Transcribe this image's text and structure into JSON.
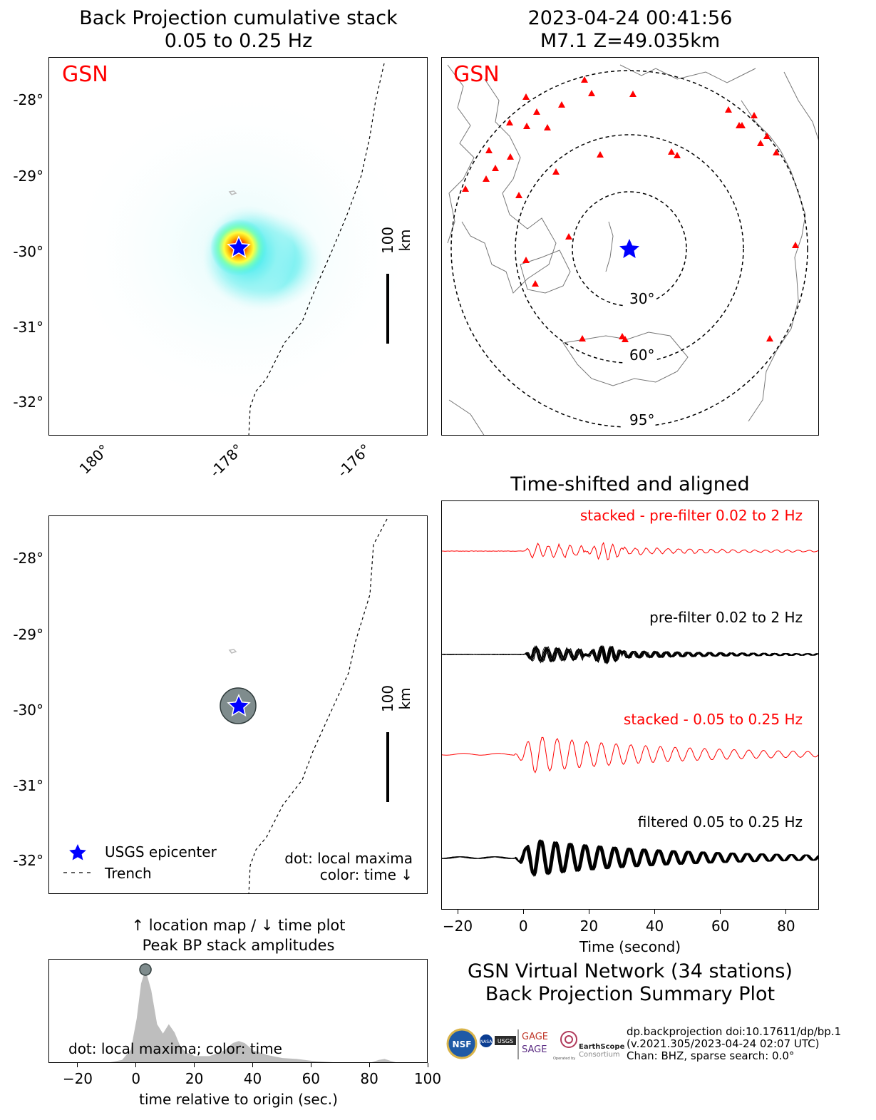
{
  "bp_title": [
    "Back Projection cumulative stack",
    "0.05 to 0.25 Hz"
  ],
  "event_title": [
    "2023-04-24 00:41:56",
    "M7.1 Z=49.035km"
  ],
  "network_label": "GSN",
  "lat_ticks": [
    "-28°",
    "-29°",
    "-30°",
    "-31°",
    "-32°"
  ],
  "lon_ticks": [
    "180°",
    "-178°",
    "-176°"
  ],
  "scale_bar": "100 km",
  "distance_rings": [
    "30°",
    "60°",
    "95°"
  ],
  "legend": {
    "epicenter": "USGS epicenter",
    "trench": "Trench"
  },
  "map_note": [
    "dot: local maxima",
    "color: time ↓"
  ],
  "peak_title": [
    "↑ location map / ↓ time plot",
    "Peak BP stack amplitudes"
  ],
  "peak_note": "dot: local maxima; color: time",
  "trace_title": "Time-shifted and aligned",
  "trace_labels": {
    "stack_broad": "stacked - pre-filter 0.02 to 2 Hz",
    "broad": "pre-filter 0.02 to 2 Hz",
    "stack_filt": "stacked - 0.05 to 0.25 Hz",
    "filt": "filtered 0.05 to 0.25 Hz"
  },
  "summary": [
    "GSN Virtual Network (34 stations)",
    "Back Projection Summary Plot"
  ],
  "footer": [
    "dp.backprojection doi:10.17611/dp/bp.1",
    "(v.2021.305/2023-04-24 02:07 UTC)",
    "Chan: BHZ, sparse search: 0.0°"
  ],
  "logos": [
    "NSF",
    "NASA",
    "USGS",
    "GAGE",
    "SAGE",
    "EarthScope",
    "Consortium",
    "Operated by"
  ],
  "colors": {
    "station": "#ff0000",
    "epicenter": "#0000ff",
    "stack_trace": "#ff0000",
    "amplitude_fill": "#bebebe",
    "peak_dot": "#7f8c8d"
  },
  "chart_data": [
    {
      "type": "heatmap",
      "title": "Back Projection cumulative stack 0.05 to 0.25 Hz",
      "xlim": [
        179.5,
        -175.5
      ],
      "ylim": [
        -32.4,
        -27.5
      ],
      "xticks": [
        180,
        -178,
        -176
      ],
      "yticks": [
        -28,
        -29,
        -30,
        -31,
        -32
      ],
      "epicenter": {
        "lon": -178.0,
        "lat": -29.95
      },
      "peak": {
        "lon": -178.0,
        "lat": -29.95
      }
    },
    {
      "type": "scatter",
      "title": "2023-04-24 00:41:56 M7.1 Z=49.035km",
      "projection": "azimuthal equidistant",
      "rings_deg": [
        30,
        60,
        95
      ],
      "stations": 34
    },
    {
      "type": "scatter",
      "title": "location map",
      "local_maxima": [
        {
          "lon": -178.0,
          "lat": -29.95
        }
      ],
      "legend": [
        "USGS epicenter",
        "Trench"
      ]
    },
    {
      "type": "area",
      "title": "Peak BP stack amplitudes",
      "xlabel": "time relative to origin (sec.)",
      "xlim": [
        -30,
        100
      ],
      "xticks": [
        -20,
        0,
        20,
        40,
        60,
        80,
        100
      ],
      "x": [
        -30,
        -10,
        -5,
        -2,
        0,
        1.5,
        3,
        5,
        7,
        9,
        11,
        13,
        15,
        17,
        20,
        25,
        30,
        33,
        35,
        37,
        40,
        45,
        50,
        55,
        60,
        70,
        75,
        80,
        83,
        85,
        87,
        90,
        100
      ],
      "values": [
        0,
        0.01,
        0.04,
        0.15,
        0.48,
        0.85,
        1.0,
        0.78,
        0.42,
        0.32,
        0.42,
        0.33,
        0.18,
        0.12,
        0.08,
        0.08,
        0.14,
        0.22,
        0.24,
        0.22,
        0.14,
        0.09,
        0.06,
        0.05,
        0.03,
        0.01,
        0.005,
        0.01,
        0.04,
        0.05,
        0.03,
        0.005,
        0
      ],
      "peak_dot": {
        "x": 3,
        "y": 1.0
      }
    },
    {
      "type": "line",
      "title": "Time-shifted and aligned",
      "xlabel": "Time (second)",
      "xlim": [
        -25,
        90
      ],
      "xticks": [
        -20,
        0,
        20,
        40,
        60,
        80
      ],
      "series": [
        {
          "name": "stacked - pre-filter 0.02 to 2 Hz"
        },
        {
          "name": "pre-filter 0.02 to 2 Hz"
        },
        {
          "name": "stacked - 0.05 to 0.25 Hz"
        },
        {
          "name": "filtered 0.05 to 0.25 Hz"
        }
      ]
    }
  ]
}
